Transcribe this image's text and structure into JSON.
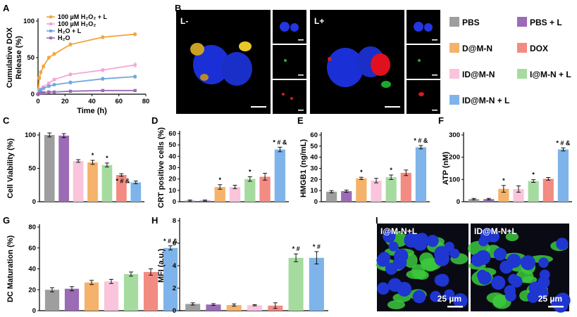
{
  "panel_labels": [
    "A",
    "B",
    "C",
    "D",
    "E",
    "F",
    "G",
    "H",
    "I"
  ],
  "colors": {
    "PBS": "#9e9e9e",
    "PBS + L": "#9b6bb5",
    "D@M-N": "#f4b26a",
    "DOX": "#f28b82",
    "ID@M-N": "#f9c4dc",
    "I@M-N + L": "#a6dba0",
    "ID@M-N + L": "#7fb4ea"
  },
  "legend_main": [
    {
      "label": "PBS",
      "color": "#9e9e9e"
    },
    {
      "label": "PBS + L",
      "color": "#9b6bb5"
    },
    {
      "label": "D@M-N",
      "color": "#f4b26a"
    },
    {
      "label": "DOX",
      "color": "#f28b82"
    },
    {
      "label": "ID@M-N",
      "color": "#f9c4dc"
    },
    {
      "label": "I@M-N + L",
      "color": "#a6dba0"
    },
    {
      "label": "ID@M-N + L",
      "color": "#7fb4ea"
    }
  ],
  "image_labels": {
    "b_left": "L-",
    "b_right": "L+",
    "i_left": "I@M-N+L",
    "i_right": "ID@M-N+L",
    "scale_i": "25 µm"
  },
  "chart_data": [
    {
      "panel": "A",
      "type": "line",
      "xlabel": "Time (h)",
      "ylabel": "Cumulative DOX Release (%)",
      "xlim": [
        0,
        80
      ],
      "ylim": [
        0,
        100
      ],
      "xticks": [
        0,
        20,
        40,
        60,
        80
      ],
      "yticks": [
        0,
        50,
        100
      ],
      "series": [
        {
          "name": "100 µM H₂O₂ + L",
          "color": "#f4a53c",
          "x": [
            0,
            1,
            2,
            4,
            8,
            12,
            24,
            48,
            72
          ],
          "y": [
            0,
            22,
            30,
            38,
            50,
            55,
            68,
            78,
            82
          ],
          "err": [
            0,
            3,
            3,
            3,
            3,
            3,
            3,
            3,
            3
          ]
        },
        {
          "name": "100 µM H₂O₂",
          "color": "#f6a6d5",
          "x": [
            0,
            1,
            2,
            4,
            8,
            12,
            24,
            48,
            72
          ],
          "y": [
            0,
            5,
            7,
            10,
            15,
            20,
            27,
            33,
            40
          ],
          "err": [
            0,
            2,
            2,
            2,
            2,
            3,
            3,
            3,
            4
          ]
        },
        {
          "name": "H₂O + L",
          "color": "#6fa8e0",
          "x": [
            0,
            1,
            2,
            4,
            8,
            12,
            24,
            48,
            72
          ],
          "y": [
            0,
            4,
            6,
            8,
            11,
            13,
            16,
            21,
            24
          ],
          "err": [
            0,
            2,
            2,
            2,
            2,
            2,
            3,
            3,
            3
          ]
        },
        {
          "name": "H₂O",
          "color": "#9b6bb5",
          "x": [
            0,
            1,
            2,
            4,
            8,
            12,
            24,
            48,
            72
          ],
          "y": [
            0,
            1,
            2,
            2,
            3,
            3,
            4,
            5,
            5
          ],
          "err": [
            0,
            1,
            1,
            1,
            1,
            1,
            1,
            1,
            1
          ]
        }
      ]
    },
    {
      "panel": "C",
      "type": "bar",
      "ylabel": "Cell Viability (%)",
      "ylim": [
        0,
        100
      ],
      "yticks": [
        0,
        50,
        100
      ],
      "categories": [
        "PBS",
        "PBS + L",
        "ID@M-N",
        "D@M-N",
        "I@M-N + L",
        "DOX",
        "ID@M-N + L"
      ],
      "values": [
        100,
        99,
        61,
        59,
        55,
        40,
        29
      ],
      "err": [
        3,
        3,
        2,
        3,
        3,
        2,
        2
      ],
      "annot": [
        "",
        "",
        "",
        "*",
        "*",
        "",
        "* # &"
      ]
    },
    {
      "panel": "D",
      "type": "bar",
      "ylabel": "CRT positive cells (%)",
      "ylim": [
        0,
        60
      ],
      "yticks": [
        0,
        10,
        20,
        30,
        40,
        50,
        60
      ],
      "categories": [
        "PBS",
        "PBS + L",
        "D@M-N",
        "ID@M-N",
        "I@M-N + L",
        "DOX",
        "ID@M-N + L"
      ],
      "values": [
        1,
        1,
        13,
        13,
        20,
        22,
        46
      ],
      "err": [
        0.5,
        0.5,
        2,
        1.5,
        2,
        3,
        2
      ],
      "annot": [
        "",
        "",
        "*",
        "",
        "*",
        "",
        "* # &"
      ]
    },
    {
      "panel": "E",
      "type": "bar",
      "ylabel": "HMGB1 (ng/mL)",
      "ylim": [
        0,
        60
      ],
      "yticks": [
        0,
        10,
        20,
        30,
        40,
        50,
        60
      ],
      "categories": [
        "PBS",
        "PBS + L",
        "D@M-N",
        "ID@M-N",
        "I@M-N + L",
        "DOX",
        "ID@M-N + L"
      ],
      "values": [
        9,
        9.5,
        21,
        19,
        22,
        26,
        49
      ],
      "err": [
        1,
        1,
        1,
        2,
        2,
        2.5,
        1.5
      ],
      "annot": [
        "",
        "",
        "*",
        "",
        "*",
        "",
        "* # &"
      ]
    },
    {
      "panel": "F",
      "type": "bar",
      "ylabel": "ATP (nM)",
      "ylim": [
        0,
        300
      ],
      "yticks": [
        0,
        100,
        200,
        300
      ],
      "categories": [
        "PBS",
        "PBS + L",
        "D@M-N",
        "ID@M-N",
        "I@M-N + L",
        "DOX",
        "ID@M-N + L"
      ],
      "values": [
        12,
        12,
        58,
        57,
        93,
        103,
        235
      ],
      "err": [
        3,
        3,
        15,
        14,
        6,
        6,
        7
      ],
      "annot": [
        "",
        "",
        "*",
        "",
        "*",
        "",
        "* # &"
      ]
    },
    {
      "panel": "G",
      "type": "bar",
      "ylabel": "DC Maturation (%)",
      "ylim": [
        0,
        80
      ],
      "yticks": [
        0,
        20,
        40,
        60,
        80
      ],
      "categories": [
        "PBS",
        "PBS + L",
        "D@M-N",
        "ID@M-N",
        "I@M-N + L",
        "DOX",
        "ID@M-N + L"
      ],
      "values": [
        20,
        21,
        27,
        28,
        35,
        37,
        60
      ],
      "err": [
        2,
        2,
        2,
        2,
        2,
        3,
        2
      ],
      "annot": [
        "",
        "",
        "",
        "",
        "",
        "",
        "* # &"
      ]
    },
    {
      "panel": "H",
      "type": "bar",
      "ylabel": "MFI (a.u.)",
      "ylim": [
        0,
        8
      ],
      "yticks": [
        0,
        2,
        4,
        6,
        8
      ],
      "categories": [
        "PBS",
        "PBS + L",
        "D@M-N",
        "ID@M-N",
        "DOX",
        "I@M-N + L",
        "ID@M-N + L"
      ],
      "values": [
        0.6,
        0.55,
        0.5,
        0.48,
        0.45,
        4.7,
        4.7
      ],
      "err": [
        0.1,
        0.08,
        0.1,
        0.05,
        0.25,
        0.35,
        0.55
      ],
      "annot": [
        "",
        "",
        "",
        "",
        "",
        "* #",
        "* #"
      ]
    }
  ]
}
